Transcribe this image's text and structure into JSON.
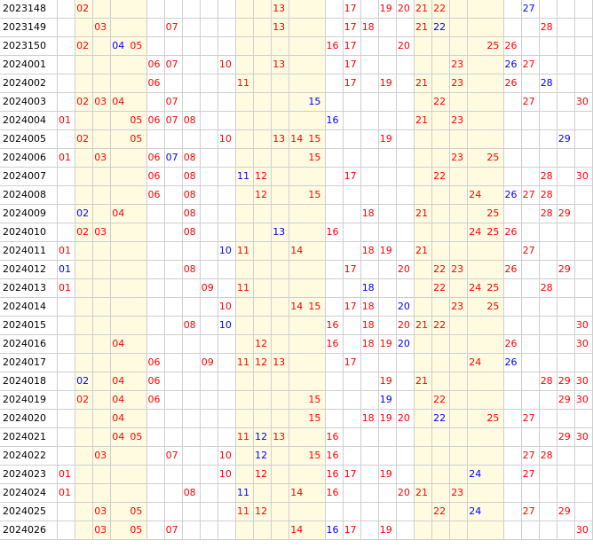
{
  "colors": {
    "red": "#ff0000",
    "blue": "#0000ff",
    "text": "#000000",
    "band": "#fefbe0",
    "grid": "#cfcfcf"
  },
  "columns": [
    "01",
    "02",
    "03",
    "04",
    "05",
    "06",
    "07",
    "08",
    "09",
    "10",
    "11",
    "12",
    "13",
    "14",
    "15",
    "16",
    "17",
    "18",
    "19",
    "20",
    "21",
    "22",
    "23",
    "24",
    "25",
    "26",
    "27",
    "28",
    "29",
    "30"
  ],
  "rows": [
    {
      "period": "2023148",
      "nums": [
        {
          "n": "02",
          "c": "red"
        },
        {
          "n": "13",
          "c": "red"
        },
        {
          "n": "17",
          "c": "red"
        },
        {
          "n": "19",
          "c": "red"
        },
        {
          "n": "20",
          "c": "red"
        },
        {
          "n": "21",
          "c": "red"
        },
        {
          "n": "22",
          "c": "red"
        },
        {
          "n": "27",
          "c": "blue"
        }
      ]
    },
    {
      "period": "2023149",
      "nums": [
        {
          "n": "03",
          "c": "red"
        },
        {
          "n": "07",
          "c": "red"
        },
        {
          "n": "13",
          "c": "red"
        },
        {
          "n": "17",
          "c": "red"
        },
        {
          "n": "18",
          "c": "red"
        },
        {
          "n": "21",
          "c": "red"
        },
        {
          "n": "22",
          "c": "blue"
        },
        {
          "n": "28",
          "c": "red"
        }
      ]
    },
    {
      "period": "2023150",
      "nums": [
        {
          "n": "02",
          "c": "red"
        },
        {
          "n": "04",
          "c": "blue"
        },
        {
          "n": "05",
          "c": "red"
        },
        {
          "n": "16",
          "c": "red"
        },
        {
          "n": "17",
          "c": "red"
        },
        {
          "n": "20",
          "c": "red"
        },
        {
          "n": "25",
          "c": "red"
        },
        {
          "n": "26",
          "c": "red"
        }
      ]
    },
    {
      "period": "2024001",
      "nums": [
        {
          "n": "06",
          "c": "red"
        },
        {
          "n": "07",
          "c": "red"
        },
        {
          "n": "10",
          "c": "red"
        },
        {
          "n": "13",
          "c": "red"
        },
        {
          "n": "17",
          "c": "red"
        },
        {
          "n": "23",
          "c": "red"
        },
        {
          "n": "26",
          "c": "blue"
        },
        {
          "n": "27",
          "c": "red"
        }
      ]
    },
    {
      "period": "2024002",
      "nums": [
        {
          "n": "06",
          "c": "red"
        },
        {
          "n": "11",
          "c": "red"
        },
        {
          "n": "17",
          "c": "red"
        },
        {
          "n": "19",
          "c": "red"
        },
        {
          "n": "21",
          "c": "red"
        },
        {
          "n": "23",
          "c": "red"
        },
        {
          "n": "26",
          "c": "red"
        },
        {
          "n": "28",
          "c": "blue"
        }
      ]
    },
    {
      "period": "2024003",
      "nums": [
        {
          "n": "02",
          "c": "red"
        },
        {
          "n": "03",
          "c": "red"
        },
        {
          "n": "04",
          "c": "red"
        },
        {
          "n": "07",
          "c": "red"
        },
        {
          "n": "15",
          "c": "blue"
        },
        {
          "n": "22",
          "c": "red"
        },
        {
          "n": "27",
          "c": "red"
        },
        {
          "n": "30",
          "c": "red"
        }
      ]
    },
    {
      "period": "2024004",
      "nums": [
        {
          "n": "01",
          "c": "red"
        },
        {
          "n": "05",
          "c": "red"
        },
        {
          "n": "06",
          "c": "red"
        },
        {
          "n": "07",
          "c": "red"
        },
        {
          "n": "08",
          "c": "red"
        },
        {
          "n": "16",
          "c": "blue"
        },
        {
          "n": "21",
          "c": "red"
        },
        {
          "n": "23",
          "c": "red"
        }
      ]
    },
    {
      "period": "2024005",
      "nums": [
        {
          "n": "02",
          "c": "red"
        },
        {
          "n": "05",
          "c": "red"
        },
        {
          "n": "10",
          "c": "red"
        },
        {
          "n": "13",
          "c": "red"
        },
        {
          "n": "14",
          "c": "red"
        },
        {
          "n": "15",
          "c": "red"
        },
        {
          "n": "19",
          "c": "red"
        },
        {
          "n": "29",
          "c": "blue"
        }
      ]
    },
    {
      "period": "2024006",
      "nums": [
        {
          "n": "01",
          "c": "red"
        },
        {
          "n": "03",
          "c": "red"
        },
        {
          "n": "06",
          "c": "red"
        },
        {
          "n": "07",
          "c": "blue"
        },
        {
          "n": "08",
          "c": "red"
        },
        {
          "n": "15",
          "c": "red"
        },
        {
          "n": "23",
          "c": "red"
        },
        {
          "n": "25",
          "c": "red"
        }
      ]
    },
    {
      "period": "2024007",
      "nums": [
        {
          "n": "06",
          "c": "red"
        },
        {
          "n": "08",
          "c": "red"
        },
        {
          "n": "11",
          "c": "blue"
        },
        {
          "n": "12",
          "c": "red"
        },
        {
          "n": "17",
          "c": "red"
        },
        {
          "n": "22",
          "c": "red"
        },
        {
          "n": "28",
          "c": "red"
        },
        {
          "n": "30",
          "c": "red"
        }
      ]
    },
    {
      "period": "2024008",
      "nums": [
        {
          "n": "06",
          "c": "red"
        },
        {
          "n": "08",
          "c": "red"
        },
        {
          "n": "12",
          "c": "red"
        },
        {
          "n": "15",
          "c": "red"
        },
        {
          "n": "24",
          "c": "red"
        },
        {
          "n": "26",
          "c": "blue"
        },
        {
          "n": "27",
          "c": "red"
        },
        {
          "n": "28",
          "c": "red"
        }
      ]
    },
    {
      "period": "2024009",
      "nums": [
        {
          "n": "02",
          "c": "blue"
        },
        {
          "n": "04",
          "c": "red"
        },
        {
          "n": "08",
          "c": "red"
        },
        {
          "n": "18",
          "c": "red"
        },
        {
          "n": "21",
          "c": "red"
        },
        {
          "n": "25",
          "c": "red"
        },
        {
          "n": "28",
          "c": "red"
        },
        {
          "n": "29",
          "c": "red"
        }
      ]
    },
    {
      "period": "2024010",
      "nums": [
        {
          "n": "02",
          "c": "red"
        },
        {
          "n": "03",
          "c": "red"
        },
        {
          "n": "08",
          "c": "red"
        },
        {
          "n": "13",
          "c": "blue"
        },
        {
          "n": "16",
          "c": "red"
        },
        {
          "n": "24",
          "c": "red"
        },
        {
          "n": "25",
          "c": "red"
        },
        {
          "n": "26",
          "c": "red"
        }
      ]
    },
    {
      "period": "2024011",
      "nums": [
        {
          "n": "01",
          "c": "red"
        },
        {
          "n": "10",
          "c": "blue"
        },
        {
          "n": "11",
          "c": "red"
        },
        {
          "n": "14",
          "c": "red"
        },
        {
          "n": "18",
          "c": "red"
        },
        {
          "n": "19",
          "c": "red"
        },
        {
          "n": "21",
          "c": "red"
        },
        {
          "n": "27",
          "c": "red"
        }
      ]
    },
    {
      "period": "2024012",
      "nums": [
        {
          "n": "01",
          "c": "blue"
        },
        {
          "n": "08",
          "c": "red"
        },
        {
          "n": "17",
          "c": "red"
        },
        {
          "n": "20",
          "c": "red"
        },
        {
          "n": "22",
          "c": "red"
        },
        {
          "n": "23",
          "c": "red"
        },
        {
          "n": "26",
          "c": "red"
        },
        {
          "n": "29",
          "c": "red"
        }
      ]
    },
    {
      "period": "2024013",
      "nums": [
        {
          "n": "01",
          "c": "red"
        },
        {
          "n": "09",
          "c": "red"
        },
        {
          "n": "11",
          "c": "red"
        },
        {
          "n": "18",
          "c": "blue"
        },
        {
          "n": "22",
          "c": "red"
        },
        {
          "n": "24",
          "c": "red"
        },
        {
          "n": "25",
          "c": "red"
        },
        {
          "n": "28",
          "c": "red"
        }
      ]
    },
    {
      "period": "2024014",
      "nums": [
        {
          "n": "10",
          "c": "red"
        },
        {
          "n": "14",
          "c": "red"
        },
        {
          "n": "15",
          "c": "red"
        },
        {
          "n": "17",
          "c": "red"
        },
        {
          "n": "18",
          "c": "red"
        },
        {
          "n": "20",
          "c": "blue"
        },
        {
          "n": "23",
          "c": "red"
        },
        {
          "n": "25",
          "c": "red"
        }
      ]
    },
    {
      "period": "2024015",
      "nums": [
        {
          "n": "08",
          "c": "red"
        },
        {
          "n": "10",
          "c": "blue"
        },
        {
          "n": "16",
          "c": "red"
        },
        {
          "n": "18",
          "c": "red"
        },
        {
          "n": "20",
          "c": "red"
        },
        {
          "n": "21",
          "c": "red"
        },
        {
          "n": "22",
          "c": "red"
        },
        {
          "n": "30",
          "c": "red"
        }
      ]
    },
    {
      "period": "2024016",
      "nums": [
        {
          "n": "04",
          "c": "red"
        },
        {
          "n": "12",
          "c": "red"
        },
        {
          "n": "16",
          "c": "red"
        },
        {
          "n": "18",
          "c": "red"
        },
        {
          "n": "19",
          "c": "red"
        },
        {
          "n": "20",
          "c": "blue"
        },
        {
          "n": "26",
          "c": "red"
        },
        {
          "n": "30",
          "c": "red"
        }
      ]
    },
    {
      "period": "2024017",
      "nums": [
        {
          "n": "06",
          "c": "red"
        },
        {
          "n": "09",
          "c": "red"
        },
        {
          "n": "11",
          "c": "red"
        },
        {
          "n": "12",
          "c": "red"
        },
        {
          "n": "13",
          "c": "red"
        },
        {
          "n": "17",
          "c": "red"
        },
        {
          "n": "24",
          "c": "red"
        },
        {
          "n": "26",
          "c": "blue"
        }
      ]
    },
    {
      "period": "2024018",
      "nums": [
        {
          "n": "02",
          "c": "blue"
        },
        {
          "n": "04",
          "c": "red"
        },
        {
          "n": "06",
          "c": "red"
        },
        {
          "n": "19",
          "c": "red"
        },
        {
          "n": "21",
          "c": "red"
        },
        {
          "n": "28",
          "c": "red"
        },
        {
          "n": "29",
          "c": "red"
        },
        {
          "n": "30",
          "c": "red"
        }
      ]
    },
    {
      "period": "2024019",
      "nums": [
        {
          "n": "02",
          "c": "red"
        },
        {
          "n": "04",
          "c": "red"
        },
        {
          "n": "06",
          "c": "red"
        },
        {
          "n": "15",
          "c": "red"
        },
        {
          "n": "19",
          "c": "blue"
        },
        {
          "n": "22",
          "c": "red"
        },
        {
          "n": "29",
          "c": "red"
        },
        {
          "n": "30",
          "c": "red"
        }
      ]
    },
    {
      "period": "2024020",
      "nums": [
        {
          "n": "04",
          "c": "red"
        },
        {
          "n": "15",
          "c": "red"
        },
        {
          "n": "18",
          "c": "red"
        },
        {
          "n": "19",
          "c": "red"
        },
        {
          "n": "20",
          "c": "red"
        },
        {
          "n": "22",
          "c": "blue"
        },
        {
          "n": "25",
          "c": "red"
        },
        {
          "n": "27",
          "c": "red"
        }
      ]
    },
    {
      "period": "2024021",
      "nums": [
        {
          "n": "04",
          "c": "red"
        },
        {
          "n": "05",
          "c": "red"
        },
        {
          "n": "11",
          "c": "red"
        },
        {
          "n": "12",
          "c": "blue"
        },
        {
          "n": "13",
          "c": "red"
        },
        {
          "n": "16",
          "c": "red"
        },
        {
          "n": "29",
          "c": "red"
        },
        {
          "n": "30",
          "c": "red"
        }
      ]
    },
    {
      "period": "2024022",
      "nums": [
        {
          "n": "03",
          "c": "red"
        },
        {
          "n": "07",
          "c": "red"
        },
        {
          "n": "10",
          "c": "red"
        },
        {
          "n": "12",
          "c": "blue"
        },
        {
          "n": "15",
          "c": "red"
        },
        {
          "n": "16",
          "c": "red"
        },
        {
          "n": "27",
          "c": "red"
        },
        {
          "n": "28",
          "c": "red"
        }
      ]
    },
    {
      "period": "2024023",
      "nums": [
        {
          "n": "01",
          "c": "red"
        },
        {
          "n": "10",
          "c": "red"
        },
        {
          "n": "12",
          "c": "red"
        },
        {
          "n": "16",
          "c": "red"
        },
        {
          "n": "17",
          "c": "red"
        },
        {
          "n": "19",
          "c": "red"
        },
        {
          "n": "24",
          "c": "blue"
        },
        {
          "n": "27",
          "c": "red"
        }
      ]
    },
    {
      "period": "2024024",
      "nums": [
        {
          "n": "01",
          "c": "red"
        },
        {
          "n": "08",
          "c": "red"
        },
        {
          "n": "11",
          "c": "blue"
        },
        {
          "n": "14",
          "c": "red"
        },
        {
          "n": "16",
          "c": "red"
        },
        {
          "n": "20",
          "c": "red"
        },
        {
          "n": "21",
          "c": "red"
        },
        {
          "n": "23",
          "c": "red"
        }
      ]
    },
    {
      "period": "2024025",
      "nums": [
        {
          "n": "03",
          "c": "red"
        },
        {
          "n": "05",
          "c": "red"
        },
        {
          "n": "11",
          "c": "red"
        },
        {
          "n": "12",
          "c": "red"
        },
        {
          "n": "22",
          "c": "red"
        },
        {
          "n": "24",
          "c": "blue"
        },
        {
          "n": "27",
          "c": "red"
        },
        {
          "n": "29",
          "c": "red"
        }
      ]
    },
    {
      "period": "2024026",
      "nums": [
        {
          "n": "03",
          "c": "red"
        },
        {
          "n": "05",
          "c": "red"
        },
        {
          "n": "07",
          "c": "red"
        },
        {
          "n": "14",
          "c": "red"
        },
        {
          "n": "16",
          "c": "blue"
        },
        {
          "n": "17",
          "c": "red"
        },
        {
          "n": "19",
          "c": "red"
        },
        {
          "n": "30",
          "c": "red"
        }
      ]
    }
  ]
}
